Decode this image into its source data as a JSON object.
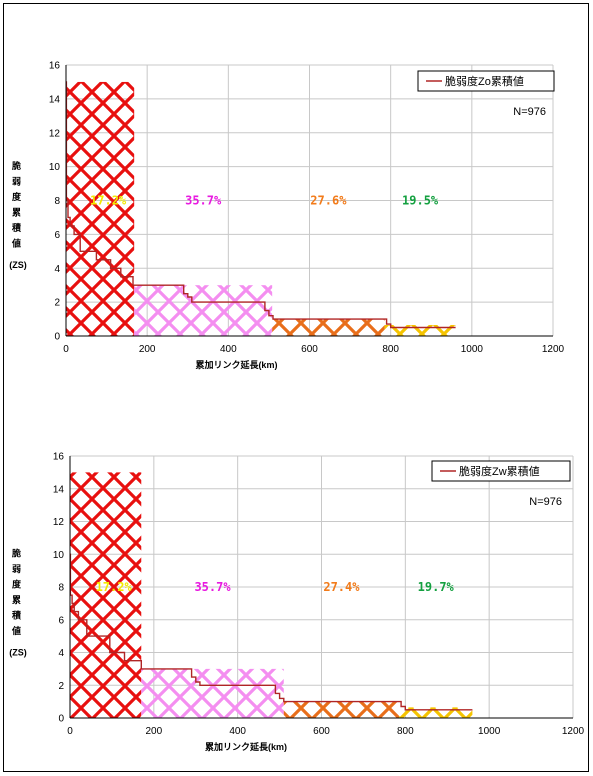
{
  "chart_data": [
    {
      "type": "line",
      "legend": "脆弱度Zo累積値",
      "n_label": "N=976",
      "ylabel_chars": [
        "脆",
        "弱",
        "度",
        "累",
        "積",
        "値",
        "(ZS)"
      ],
      "xlabel": "累加リンク延長(km)",
      "xlim": [
        0,
        1200
      ],
      "ylim": [
        0,
        16
      ],
      "xticks": [
        0,
        200,
        400,
        600,
        800,
        1000,
        1200
      ],
      "yticks": [
        0,
        2,
        4,
        6,
        8,
        10,
        12,
        14,
        16
      ],
      "grid": true,
      "legend_position": "top-right",
      "series": [
        {
          "x": [
            0,
            1,
            1,
            5,
            5,
            10,
            10,
            20,
            20,
            35,
            35,
            75,
            75,
            110,
            110,
            135,
            135,
            165,
            165,
            290,
            290,
            300,
            300,
            310,
            310,
            490,
            490,
            500,
            500,
            510,
            510,
            790,
            790,
            800,
            800,
            960
          ],
          "y": [
            15,
            15,
            8,
            8,
            7,
            7,
            6.5,
            6.5,
            6,
            6,
            5,
            5,
            4.5,
            4.5,
            4,
            4,
            3.5,
            3.5,
            3,
            3,
            2.5,
            2.5,
            2.3,
            2.3,
            2,
            2,
            1.5,
            1.5,
            1.2,
            1.2,
            1,
            1,
            0.7,
            0.7,
            0.5,
            0.5
          ]
        }
      ],
      "regions": [
        {
          "x_start": 0,
          "x_end": 168,
          "y_top": 15,
          "color": "#e8100f",
          "pct": "17.2%",
          "label_color": "#f2ea00"
        },
        {
          "x_start": 168,
          "x_end": 508,
          "y_top": 3,
          "color": "#f48ef0",
          "pct": "35.7%",
          "label_color": "#e81ae0"
        },
        {
          "x_start": 508,
          "x_end": 785,
          "y_top": 1,
          "color": "#e86e1a",
          "pct": "27.6%",
          "label_color": "#f27b1a"
        },
        {
          "x_start": 785,
          "x_end": 960,
          "y_top": 0.65,
          "color": "#f5c400",
          "pct": "19.5%",
          "label_color": "#14a040"
        }
      ]
    },
    {
      "type": "line",
      "legend": "脆弱度Zw累積値",
      "n_label": "N=976",
      "ylabel_chars": [
        "脆",
        "弱",
        "度",
        "累",
        "積",
        "値",
        "(ZS)"
      ],
      "xlabel": "累加リンク延長(km)",
      "xlim": [
        0,
        1200
      ],
      "ylim": [
        0,
        16
      ],
      "xticks": [
        0,
        200,
        400,
        600,
        800,
        1000,
        1200
      ],
      "yticks": [
        0,
        2,
        4,
        6,
        8,
        10,
        12,
        14,
        16
      ],
      "grid": true,
      "legend_position": "top-right",
      "series": [
        {
          "x": [
            0,
            1,
            1,
            5,
            5,
            10,
            10,
            20,
            20,
            40,
            40,
            95,
            95,
            130,
            130,
            170,
            170,
            290,
            290,
            300,
            300,
            310,
            310,
            490,
            490,
            500,
            500,
            510,
            510,
            790,
            790,
            800,
            800,
            960
          ],
          "y": [
            10,
            10,
            7.5,
            7.5,
            7,
            7,
            6.5,
            6.5,
            6,
            6,
            5,
            5,
            4,
            4,
            3.5,
            3.5,
            3,
            3,
            2.5,
            2.5,
            2.2,
            2.2,
            2,
            2,
            1.5,
            1.5,
            1.2,
            1.2,
            1,
            1,
            0.7,
            0.7,
            0.5,
            0.5
          ]
        }
      ],
      "regions": [
        {
          "x_start": 0,
          "x_end": 170,
          "y_top": 15,
          "color": "#e8100f",
          "pct": "17.2%",
          "label_color": "#f2ea00"
        },
        {
          "x_start": 170,
          "x_end": 510,
          "y_top": 3,
          "color": "#f48ef0",
          "pct": "35.7%",
          "label_color": "#e81ae0"
        },
        {
          "x_start": 510,
          "x_end": 785,
          "y_top": 1,
          "color": "#e86e1a",
          "pct": "27.4%",
          "label_color": "#f27b1a"
        },
        {
          "x_start": 785,
          "x_end": 960,
          "y_top": 0.65,
          "color": "#f5c400",
          "pct": "19.7%",
          "label_color": "#14a040"
        }
      ]
    }
  ],
  "colors": {
    "line": "#b02525",
    "grid": "#c8c8c8",
    "axis": "#000000"
  }
}
